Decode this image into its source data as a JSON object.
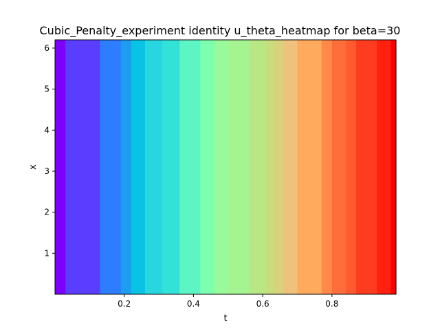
{
  "chart_data": {
    "type": "heatmap",
    "title": "Cubic_Penalty_experiment identity u_theta_heatmap for beta=30",
    "xlabel": "t",
    "ylabel": "x",
    "xlim": [
      0.0,
      0.985
    ],
    "ylim": [
      0.0,
      6.2
    ],
    "xticks": [
      0.2,
      0.4,
      0.6,
      0.8
    ],
    "xtick_labels": [
      "0.2",
      "0.4",
      "0.6",
      "0.8"
    ],
    "yticks": [
      1,
      2,
      3,
      4,
      5,
      6
    ],
    "ytick_labels": [
      "1",
      "2",
      "3",
      "4",
      "5",
      "6"
    ],
    "colormap": "rainbow",
    "grid": false,
    "legend": "none",
    "bands": [
      {
        "t_start": 0.0,
        "t_end": 0.03,
        "color": "#7d00ff"
      },
      {
        "t_start": 0.03,
        "t_end": 0.13,
        "color": "#5b3dff"
      },
      {
        "t_start": 0.13,
        "t_end": 0.19,
        "color": "#2e7cff"
      },
      {
        "t_start": 0.19,
        "t_end": 0.22,
        "color": "#1e9df0"
      },
      {
        "t_start": 0.22,
        "t_end": 0.26,
        "color": "#08c3e6"
      },
      {
        "t_start": 0.26,
        "t_end": 0.31,
        "color": "#27d7e0"
      },
      {
        "t_start": 0.31,
        "t_end": 0.36,
        "color": "#33e2d6"
      },
      {
        "t_start": 0.36,
        "t_end": 0.42,
        "color": "#5ef5c4"
      },
      {
        "t_start": 0.42,
        "t_end": 0.46,
        "color": "#7dffb0"
      },
      {
        "t_start": 0.46,
        "t_end": 0.5,
        "color": "#97fb9b"
      },
      {
        "t_start": 0.5,
        "t_end": 0.56,
        "color": "#a5f492"
      },
      {
        "t_start": 0.56,
        "t_end": 0.61,
        "color": "#b8e884"
      },
      {
        "t_start": 0.61,
        "t_end": 0.63,
        "color": "#c8dd7c"
      },
      {
        "t_start": 0.63,
        "t_end": 0.66,
        "color": "#d8d27c"
      },
      {
        "t_start": 0.66,
        "t_end": 0.7,
        "color": "#eec27c"
      },
      {
        "t_start": 0.7,
        "t_end": 0.77,
        "color": "#ffaa5c"
      },
      {
        "t_start": 0.77,
        "t_end": 0.8,
        "color": "#ff8a48"
      },
      {
        "t_start": 0.8,
        "t_end": 0.84,
        "color": "#ff6e3a"
      },
      {
        "t_start": 0.84,
        "t_end": 0.87,
        "color": "#ff5a30"
      },
      {
        "t_start": 0.87,
        "t_end": 0.93,
        "color": "#ff3c20"
      },
      {
        "t_start": 0.93,
        "t_end": 0.97,
        "color": "#ff2010"
      },
      {
        "t_start": 0.97,
        "t_end": 0.985,
        "color": "#ff0000"
      }
    ]
  }
}
